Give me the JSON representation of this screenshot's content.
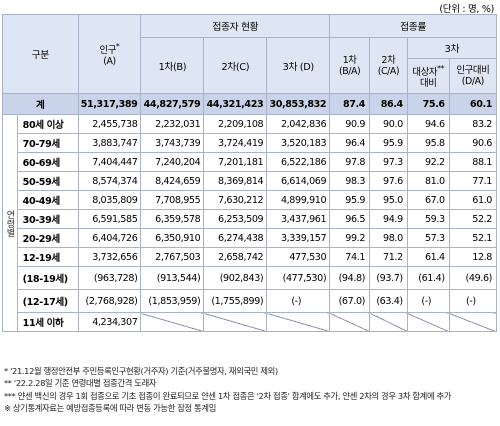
{
  "unit_note": "(단위 : 명, %)",
  "headers": {
    "group": "구분",
    "population": "인구",
    "population_mark": "*",
    "population_sub": "(A)",
    "vaccinated_status": "접종자 현황",
    "dose1": "1차(B)",
    "dose2": "2차(C)",
    "dose3": "3차 (D)",
    "rate": "접종률",
    "rate1": "1차",
    "rate1_sub": "(B/A)",
    "rate2": "2차",
    "rate2_sub": "(C/A)",
    "rate3": "3차",
    "rate3_target": "대상자",
    "rate3_target_mark": "**",
    "rate3_target_sub": "대비",
    "rate3_pop": "인구대비",
    "rate3_pop_sub": "(D/A)",
    "age_group": "연령별"
  },
  "total": {
    "label": "계",
    "population": "51,317,389",
    "dose1": "44,827,579",
    "dose2": "44,321,423",
    "dose3": "30,853,832",
    "rate1": "87.4",
    "rate2": "86.4",
    "rate3_target": "75.6",
    "rate3_pop": "60.1"
  },
  "rows": [
    {
      "label": "80세 이상",
      "population": "2,455,738",
      "dose1": "2,232,031",
      "dose2": "2,209,108",
      "dose3": "2,042,836",
      "rate1": "90.9",
      "rate2": "90.0",
      "rate3_target": "94.6",
      "rate3_pop": "83.2"
    },
    {
      "label": "70-79세",
      "population": "3,883,747",
      "dose1": "3,743,739",
      "dose2": "3,724,419",
      "dose3": "3,520,183",
      "rate1": "96.4",
      "rate2": "95.9",
      "rate3_target": "95.8",
      "rate3_pop": "90.6"
    },
    {
      "label": "60-69세",
      "population": "7,404,447",
      "dose1": "7,240,204",
      "dose2": "7,201,181",
      "dose3": "6,522,186",
      "rate1": "97.8",
      "rate2": "97.3",
      "rate3_target": "92.2",
      "rate3_pop": "88.1"
    },
    {
      "label": "50-59세",
      "population": "8,574,374",
      "dose1": "8,424,659",
      "dose2": "8,369,814",
      "dose3": "6,614,069",
      "rate1": "98.3",
      "rate2": "97.6",
      "rate3_target": "81.0",
      "rate3_pop": "77.1"
    },
    {
      "label": "40-49세",
      "population": "8,035,809",
      "dose1": "7,708,955",
      "dose2": "7,630,212",
      "dose3": "4,899,910",
      "rate1": "95.9",
      "rate2": "95.0",
      "rate3_target": "67.0",
      "rate3_pop": "61.0"
    },
    {
      "label": "30-39세",
      "population": "6,591,585",
      "dose1": "6,359,578",
      "dose2": "6,253,509",
      "dose3": "3,437,961",
      "rate1": "96.5",
      "rate2": "94.9",
      "rate3_target": "59.3",
      "rate3_pop": "52.2"
    },
    {
      "label": "20-29세",
      "population": "6,404,726",
      "dose1": "6,350,910",
      "dose2": "6,274,438",
      "dose3": "3,339,157",
      "rate1": "99.2",
      "rate2": "98.0",
      "rate3_target": "57.3",
      "rate3_pop": "52.1"
    },
    {
      "label": "12-19세",
      "population": "3,732,656",
      "dose1": "2,767,503",
      "dose2": "2,658,742",
      "dose3": "477,530",
      "rate1": "74.1",
      "rate2": "71.2",
      "rate3_target": "61.4",
      "rate3_pop": "12.8"
    }
  ],
  "sub_rows": [
    {
      "label": "(18-19세)",
      "population": "(963,728)",
      "dose1": "(913,544)",
      "dose2": "(902,843)",
      "dose3": "(477,530)",
      "rate1": "(94.8)",
      "rate2": "(93.7)",
      "rate3_target": "(61.4)",
      "rate3_pop": "(49.6)"
    },
    {
      "label": "(12-17세)",
      "population": "(2,768,928)",
      "dose1": "(1,853,959)",
      "dose2": "(1,755,899)",
      "dose3": "(-)",
      "rate1": "(67.0)",
      "rate2": "(63.4)",
      "rate3_target": "(-)",
      "rate3_pop": "(-)"
    }
  ],
  "under11": {
    "label": "11세 이하",
    "population": "4,234,307"
  },
  "notes": [
    "* '21.12월 행정안전부 주민등록인구현황(거주자) 기준(거주불명자, 재외국민 제외)",
    "** '22.2.28일 기준 연령대별 접종간격 도래자",
    "*** 얀센 백신의 경우 1회 접종으로 기초 접종이 완료되므로 얀센 1차 접종은 '2차 접종' 합계에도 추가, 얀센 2차의 경우 3차 합계에 추가",
    "※ 상기통계자료는 예방접종등록에 따라 변동 가능한 잠정 통계임"
  ],
  "colors": {
    "header_bg": "#dfe6f3",
    "total_bg": "#c9d4ea",
    "border": "#a9b3c8"
  }
}
